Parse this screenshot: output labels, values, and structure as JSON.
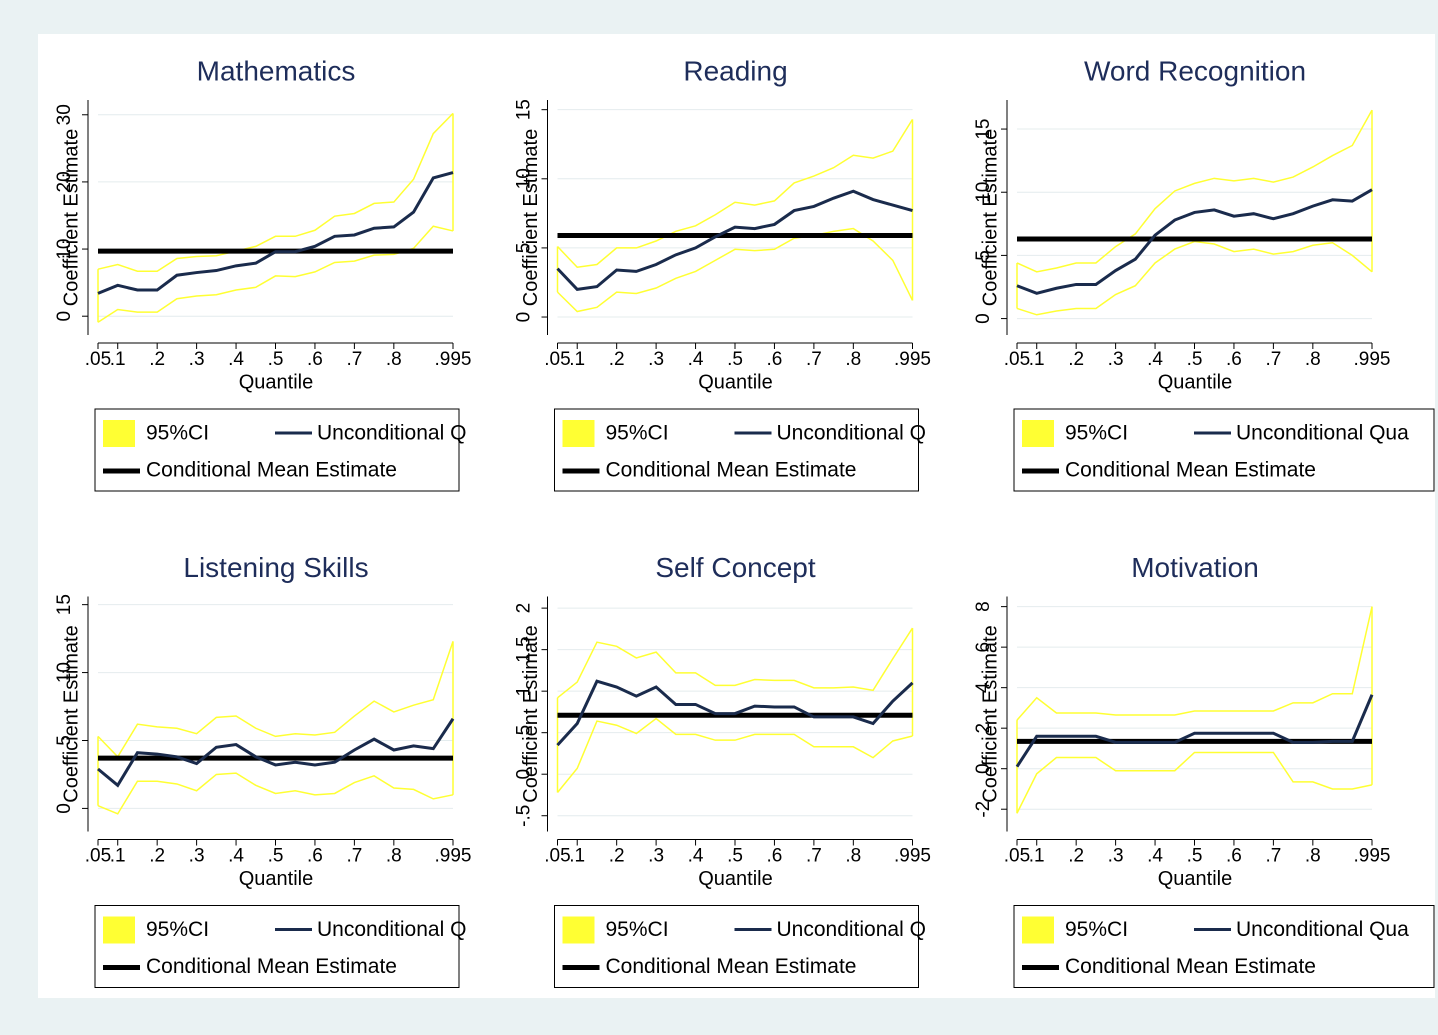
{
  "chart_data": [
    {
      "type": "line",
      "title": "Mathematics",
      "x_label": "Quantile",
      "y_label": "Coefficient Estimate",
      "categories": [
        ".05",
        ".1",
        null,
        ".2",
        null,
        ".3",
        null,
        ".4",
        null,
        ".5",
        null,
        ".6",
        null,
        ".7",
        null,
        ".8",
        null,
        null,
        ".995"
      ],
      "ylim": [
        -2.8,
        32.2
      ],
      "yticks": [
        0,
        10,
        20,
        30
      ],
      "grid": true,
      "series": [
        {
          "name": "95%CI",
          "color": "#ffff33",
          "upper": [
            7.0,
            7.7,
            6.7,
            6.7,
            8.6,
            8.9,
            9.0,
            9.7,
            10.4,
            11.9,
            11.9,
            12.8,
            14.9,
            15.3,
            16.8,
            17.0,
            20.4,
            27.2,
            30.2
          ],
          "lower": [
            -0.9,
            1.0,
            0.6,
            0.6,
            2.6,
            3.0,
            3.2,
            3.9,
            4.3,
            6.0,
            5.9,
            6.6,
            8.0,
            8.2,
            9.1,
            9.2,
            10.1,
            13.4,
            12.7
          ]
        },
        {
          "name": "Unconditional Q",
          "color": "#1a2b4c",
          "values": [
            3.4,
            4.6,
            3.9,
            3.9,
            6.1,
            6.5,
            6.8,
            7.5,
            7.9,
            9.6,
            9.6,
            10.4,
            11.9,
            12.1,
            13.1,
            13.3,
            15.5,
            20.6,
            21.4
          ]
        },
        {
          "name": "Conditional Mean Estimate",
          "color": "#000000",
          "value": 9.7
        }
      ]
    },
    {
      "type": "line",
      "title": "Reading",
      "x_label": "Quantile",
      "y_label": "Coefficient Estimate",
      "categories": [
        ".05",
        ".1",
        null,
        ".2",
        null,
        ".3",
        null,
        ".4",
        null,
        ".5",
        null,
        ".6",
        null,
        ".7",
        null,
        ".8",
        null,
        null,
        ".995"
      ],
      "ylim": [
        -1.3,
        15.7
      ],
      "yticks": [
        0,
        5,
        10,
        15
      ],
      "grid": true,
      "series": [
        {
          "name": "95%CI",
          "color": "#ffff33",
          "upper": [
            5.1,
            3.6,
            3.8,
            5.0,
            5.0,
            5.5,
            6.2,
            6.6,
            7.4,
            8.3,
            8.1,
            8.4,
            9.7,
            10.2,
            10.8,
            11.7,
            11.5,
            12.0,
            14.3
          ],
          "lower": [
            1.8,
            0.4,
            0.7,
            1.8,
            1.7,
            2.1,
            2.8,
            3.3,
            4.1,
            4.9,
            4.8,
            4.9,
            5.7,
            5.9,
            6.2,
            6.4,
            5.5,
            4.1,
            1.2
          ]
        },
        {
          "name": "Unconditional Q",
          "color": "#1a2b4c",
          "values": [
            3.5,
            2.0,
            2.2,
            3.4,
            3.3,
            3.8,
            4.5,
            5.0,
            5.8,
            6.5,
            6.4,
            6.7,
            7.7,
            8.0,
            8.6,
            9.1,
            8.5,
            8.1,
            7.7
          ]
        },
        {
          "name": "Conditional Mean Estimate",
          "color": "#000000",
          "value": 5.9
        }
      ]
    },
    {
      "type": "line",
      "title": "Word Recognition",
      "x_label": "Quantile",
      "y_label": "Coefficient Estimate",
      "categories": [
        ".05",
        ".1",
        null,
        ".2",
        null,
        ".3",
        null,
        ".4",
        null,
        ".5",
        null,
        ".6",
        null,
        ".7",
        null,
        ".8",
        null,
        null,
        ".995"
      ],
      "ylim": [
        -1.3,
        17.3
      ],
      "yticks": [
        0,
        5,
        10,
        15
      ],
      "grid": true,
      "series": [
        {
          "name": "95%CI",
          "color": "#ffff33",
          "upper": [
            4.4,
            3.7,
            4.0,
            4.4,
            4.4,
            5.7,
            6.7,
            8.7,
            10.1,
            10.7,
            11.1,
            10.9,
            11.1,
            10.8,
            11.2,
            12.0,
            12.9,
            13.7,
            16.5
          ],
          "lower": [
            0.8,
            0.3,
            0.6,
            0.8,
            0.8,
            1.9,
            2.6,
            4.4,
            5.5,
            6.1,
            5.9,
            5.3,
            5.5,
            5.1,
            5.3,
            5.8,
            6.0,
            5.0,
            3.7
          ]
        },
        {
          "name": "Unconditional Qua",
          "color": "#1a2b4c",
          "values": [
            2.6,
            2.0,
            2.4,
            2.7,
            2.7,
            3.8,
            4.7,
            6.6,
            7.8,
            8.4,
            8.6,
            8.1,
            8.3,
            7.9,
            8.3,
            8.9,
            9.4,
            9.3,
            10.2
          ]
        },
        {
          "name": "Conditional Mean Estimate",
          "color": "#000000",
          "value": 6.3
        }
      ]
    },
    {
      "type": "line",
      "title": "Listening Skills",
      "x_label": "Quantile",
      "y_label": "Coefficient Estimate",
      "categories": [
        ".05",
        ".1",
        null,
        ".2",
        null,
        ".3",
        null,
        ".4",
        null,
        ".5",
        null,
        ".6",
        null,
        ".7",
        null,
        ".8",
        null,
        null,
        ".995"
      ],
      "ylim": [
        -1.7,
        15.6
      ],
      "yticks": [
        0,
        5,
        10,
        15
      ],
      "grid": true,
      "series": [
        {
          "name": "95%CI",
          "color": "#ffff33",
          "upper": [
            5.3,
            3.8,
            6.2,
            6.0,
            5.9,
            5.5,
            6.7,
            6.8,
            5.9,
            5.3,
            5.5,
            5.4,
            5.6,
            6.8,
            7.9,
            7.1,
            7.6,
            8.0,
            12.3
          ],
          "lower": [
            0.2,
            -0.4,
            2.0,
            2.0,
            1.8,
            1.3,
            2.5,
            2.6,
            1.7,
            1.1,
            1.3,
            1.0,
            1.1,
            1.9,
            2.4,
            1.5,
            1.4,
            0.7,
            1.0
          ]
        },
        {
          "name": "Unconditional Q",
          "color": "#1a2b4c",
          "values": [
            2.9,
            1.7,
            4.1,
            4.0,
            3.8,
            3.3,
            4.5,
            4.7,
            3.8,
            3.2,
            3.4,
            3.2,
            3.4,
            4.3,
            5.1,
            4.3,
            4.6,
            4.4,
            6.6
          ]
        },
        {
          "name": "Conditional Mean Estimate",
          "color": "#000000",
          "value": 3.7
        }
      ]
    },
    {
      "type": "line",
      "title": "Self Concept",
      "x_label": "Quantile",
      "y_label": "Coefficient Estimate",
      "categories": [
        ".05",
        ".1",
        null,
        ".2",
        null,
        ".3",
        null,
        ".4",
        null,
        ".5",
        null,
        ".6",
        null,
        ".7",
        null,
        ".8",
        null,
        null,
        ".995"
      ],
      "ylim": [
        -0.69,
        2.14
      ],
      "yticks": [
        {
          "value": -0.5,
          "label": "-.5"
        },
        0,
        {
          "value": 0.5,
          "label": ".5"
        },
        1,
        1.5,
        2
      ],
      "grid": true,
      "series": [
        {
          "name": "95%CI",
          "color": "#ffff33",
          "upper": [
            0.92,
            1.11,
            1.59,
            1.54,
            1.4,
            1.47,
            1.22,
            1.22,
            1.07,
            1.07,
            1.14,
            1.13,
            1.13,
            1.04,
            1.04,
            1.05,
            1.01,
            1.39,
            1.76
          ],
          "lower": [
            -0.22,
            0.07,
            0.64,
            0.59,
            0.49,
            0.67,
            0.48,
            0.48,
            0.41,
            0.41,
            0.48,
            0.48,
            0.48,
            0.33,
            0.33,
            0.33,
            0.2,
            0.4,
            0.46
          ]
        },
        {
          "name": "Unconditional Q",
          "color": "#1a2b4c",
          "values": [
            0.35,
            0.61,
            1.12,
            1.05,
            0.94,
            1.05,
            0.84,
            0.84,
            0.73,
            0.73,
            0.82,
            0.81,
            0.81,
            0.69,
            0.69,
            0.69,
            0.61,
            0.88,
            1.1
          ]
        },
        {
          "name": "Conditional Mean Estimate",
          "color": "#000000",
          "value": 0.71
        }
      ]
    },
    {
      "type": "line",
      "title": "Motivation",
      "x_label": "Quantile",
      "y_label": "Coefficient Estimate",
      "categories": [
        ".05",
        ".1",
        null,
        ".2",
        null,
        ".3",
        null,
        ".4",
        null,
        ".5",
        null,
        ".6",
        null,
        ".7",
        null,
        ".8",
        null,
        null,
        ".995"
      ],
      "ylim": [
        -3.1,
        8.5
      ],
      "yticks": [
        -2,
        0,
        2,
        4,
        6,
        8
      ],
      "grid": true,
      "series": [
        {
          "name": "95%CI",
          "color": "#ffff33",
          "upper": [
            2.4,
            3.5,
            2.75,
            2.75,
            2.75,
            2.65,
            2.65,
            2.65,
            2.65,
            2.85,
            2.85,
            2.85,
            2.85,
            2.85,
            3.25,
            3.25,
            3.7,
            3.7,
            8.0
          ],
          "lower": [
            -2.2,
            -0.25,
            0.55,
            0.55,
            0.55,
            -0.1,
            -0.1,
            -0.1,
            -0.1,
            0.8,
            0.8,
            0.8,
            0.8,
            0.8,
            -0.65,
            -0.65,
            -1.0,
            -1.0,
            -0.8
          ]
        },
        {
          "name": "Unconditional Qua",
          "color": "#1a2b4c",
          "values": [
            0.1,
            1.6,
            1.6,
            1.6,
            1.6,
            1.3,
            1.3,
            1.3,
            1.3,
            1.75,
            1.75,
            1.75,
            1.75,
            1.75,
            1.3,
            1.3,
            1.35,
            1.35,
            3.65
          ]
        },
        {
          "name": "Conditional Mean Estimate",
          "color": "#000000",
          "value": 1.35
        }
      ]
    }
  ]
}
